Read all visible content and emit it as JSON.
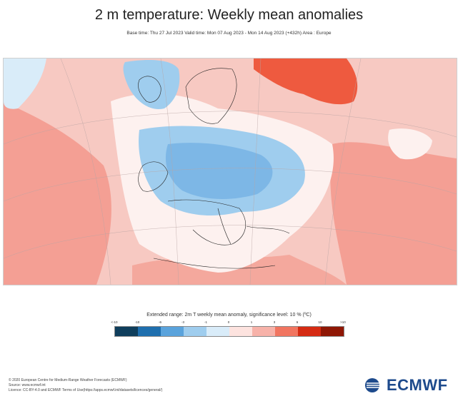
{
  "header": {
    "title": "2 m temperature: Weekly mean anomalies",
    "subtitle": "Base time: Thu 27 Jul 2023 Valid time: Mon 07 Aug 2023 - Mon 14 Aug 2023 (+432h) Area : Europe"
  },
  "map": {
    "area": "Europe",
    "description_regions": {
      "cold": [
        "central-europe",
        "british-isles-west",
        "iberia-north",
        "scandinavia-south"
      ],
      "warm": [
        "atlantic",
        "eastern-europe",
        "russia-north",
        "north-africa",
        "middle-east"
      ]
    }
  },
  "legend": {
    "title": "Extended range: 2m T weekly mean anomaly, significance level: 10 % (ºC)",
    "ticks": [
      "<-10",
      "-10",
      "-6",
      "-3",
      "-1",
      "0",
      "1",
      "3",
      "6",
      "10",
      ">10"
    ],
    "colors": [
      "#0f3e5c",
      "#1f6fae",
      "#5aa3dc",
      "#9fcdee",
      "#d9ecf9",
      "#fde3df",
      "#f7b2a9",
      "#f17560",
      "#d52b13",
      "#8f1705"
    ]
  },
  "footer": {
    "line1": "© 2020 European Centre for Medium-Range Weather Forecasts (ECMWF)",
    "line2": "Source: www.ecmwf.int",
    "line3": "Licence: CC-BY-4.0 and ECMWF Terms of Use(https://apps.ecmwf.int/datasets/licences/general/)"
  },
  "logo": {
    "text": "ECMWF",
    "color": "#1d4a8c"
  }
}
